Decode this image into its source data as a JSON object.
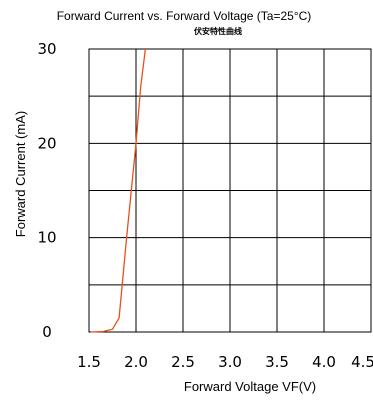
{
  "chart_data": {
    "type": "line",
    "title": "Forward Current vs. Forward Voltage (Ta=25°C)",
    "subtitle": "伏安特性曲线",
    "xlabel": "Forward Voltage  VF(V)",
    "ylabel": "Forward Current (mA)",
    "xlim": [
      1.5,
      4.5
    ],
    "ylim": [
      0,
      30
    ],
    "x_ticks": [
      1.5,
      2.0,
      2.5,
      3.0,
      3.5,
      4.0,
      4.5
    ],
    "x_tick_labels": [
      "1.5",
      "2.0",
      "2.5",
      "3.0",
      "3.5",
      "4.0",
      "4.5"
    ],
    "y_ticks": [
      0,
      10,
      20,
      30
    ],
    "y_tick_labels": [
      "0",
      "10",
      "20",
      "30"
    ],
    "grid": true,
    "series": [
      {
        "color": "#e8501e",
        "x": [
          1.52,
          1.65,
          1.75,
          1.82,
          1.9,
          2.0,
          2.05,
          2.1
        ],
        "y": [
          0,
          0.05,
          0.3,
          1.5,
          10,
          20,
          26,
          30
        ]
      }
    ]
  }
}
